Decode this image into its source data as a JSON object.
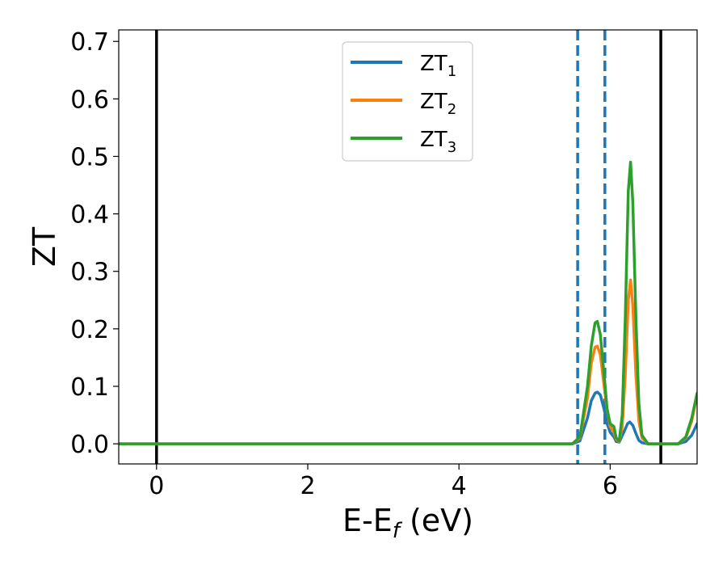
{
  "chart_data": {
    "type": "line",
    "xlabel_main": "E-E",
    "xlabel_sub": "f",
    "xlabel_tail": " (eV)",
    "ylabel": "ZT",
    "xlim": [
      -0.5,
      7.15
    ],
    "ylim": [
      -0.035,
      0.72
    ],
    "x_ticks": [
      0,
      2,
      4,
      6
    ],
    "x_tick_labels": [
      "0",
      "2",
      "4",
      "6"
    ],
    "y_ticks": [
      0.0,
      0.1,
      0.2,
      0.3,
      0.4,
      0.5,
      0.6,
      0.7
    ],
    "y_tick_labels": [
      "0.0",
      "0.1",
      "0.2",
      "0.3",
      "0.4",
      "0.5",
      "0.6",
      "0.7"
    ],
    "grid": false,
    "legend_position": "top-center",
    "vertical_lines_solid": [
      0.0,
      6.67
    ],
    "vertical_lines_dashed": [
      5.57,
      5.93
    ],
    "series": [
      {
        "name_main": "ZT",
        "name_sub": "1",
        "color": "#1f77b4",
        "x": [
          -0.5,
          5.5,
          5.6,
          5.7,
          5.75,
          5.8,
          5.83,
          5.87,
          5.92,
          5.96,
          6.0,
          6.05,
          6.08,
          6.12,
          6.18,
          6.23,
          6.26,
          6.3,
          6.34,
          6.38,
          6.42,
          6.5,
          6.9,
          7.0,
          7.08,
          7.15
        ],
        "y": [
          0.0,
          0.0,
          0.005,
          0.045,
          0.075,
          0.088,
          0.09,
          0.085,
          0.06,
          0.035,
          0.02,
          0.012,
          0.004,
          0.003,
          0.02,
          0.035,
          0.038,
          0.032,
          0.018,
          0.006,
          0.002,
          0.0,
          0.0,
          0.004,
          0.015,
          0.035
        ]
      },
      {
        "name_main": "ZT",
        "name_sub": "2",
        "color": "#ff7f0e",
        "x": [
          -0.5,
          5.5,
          5.6,
          5.7,
          5.75,
          5.8,
          5.83,
          5.87,
          5.92,
          5.96,
          6.0,
          6.05,
          6.08,
          6.12,
          6.16,
          6.2,
          6.24,
          6.27,
          6.3,
          6.34,
          6.38,
          6.42,
          6.5,
          6.9,
          7.0,
          7.08,
          7.15
        ],
        "y": [
          0.0,
          0.0,
          0.01,
          0.08,
          0.14,
          0.168,
          0.17,
          0.155,
          0.1,
          0.06,
          0.03,
          0.02,
          0.008,
          0.004,
          0.03,
          0.12,
          0.25,
          0.285,
          0.24,
          0.12,
          0.04,
          0.01,
          0.0,
          0.0,
          0.01,
          0.04,
          0.085
        ]
      },
      {
        "name_main": "ZT",
        "name_sub": "3",
        "color": "#2ca02c",
        "x": [
          -0.5,
          5.5,
          5.6,
          5.7,
          5.75,
          5.8,
          5.83,
          5.87,
          5.92,
          5.96,
          6.0,
          6.05,
          6.08,
          6.12,
          6.16,
          6.2,
          6.24,
          6.27,
          6.3,
          6.34,
          6.38,
          6.42,
          6.5,
          6.9,
          7.0,
          7.08,
          7.15
        ],
        "y": [
          0.0,
          0.0,
          0.012,
          0.1,
          0.17,
          0.21,
          0.213,
          0.19,
          0.12,
          0.06,
          0.035,
          0.03,
          0.01,
          0.005,
          0.05,
          0.22,
          0.44,
          0.49,
          0.42,
          0.22,
          0.07,
          0.015,
          0.0,
          0.0,
          0.012,
          0.045,
          0.088
        ]
      }
    ]
  }
}
